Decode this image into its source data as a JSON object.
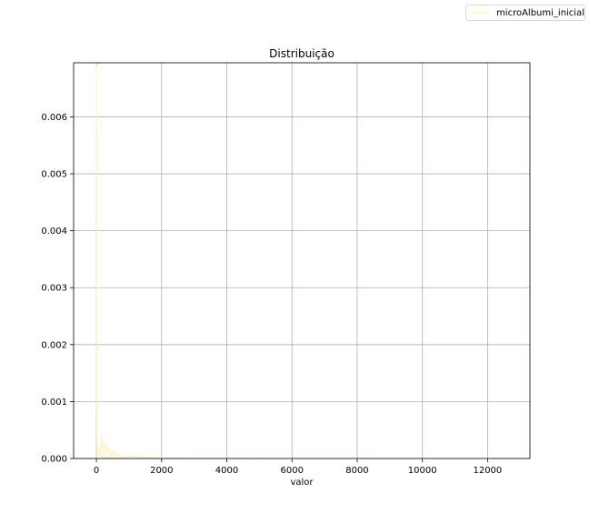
{
  "chart_data": {
    "type": "area",
    "title": "Distribuição",
    "xlabel": "valor",
    "ylabel": "",
    "xlim": [
      -700,
      13300
    ],
    "ylim": [
      0,
      0.00695
    ],
    "xticks": [
      0,
      2000,
      4000,
      6000,
      8000,
      10000,
      12000
    ],
    "yticks": [
      0.0,
      0.001,
      0.002,
      0.003,
      0.004,
      0.005,
      0.006
    ],
    "ytick_format": 3,
    "grid": true,
    "legend_position": "top-right",
    "series": [
      {
        "name": "microAlbumi_inicial",
        "color": "#fff2cc",
        "x": [
          0,
          5,
          10,
          15,
          20,
          30,
          40,
          60,
          80,
          100,
          120,
          150,
          180,
          200,
          230,
          260,
          300,
          340,
          380,
          420,
          460,
          500,
          550,
          600,
          650,
          700,
          800,
          900,
          1000,
          1200,
          1400,
          1600,
          1800,
          2000,
          2500,
          3000,
          4000,
          5000,
          6000,
          8000,
          10000,
          12000,
          12500
        ],
        "y": [
          0.0069,
          0.003,
          0.0009,
          0.0004,
          0.00025,
          0.00015,
          0.00012,
          0.0001,
          9e-05,
          8e-05,
          0.0002,
          0.00045,
          0.0003,
          0.00022,
          0.00012,
          0.00028,
          0.00018,
          0.0001,
          0.00022,
          0.00012,
          8e-05,
          0.00015,
          9e-05,
          0.00011,
          7e-05,
          6e-05,
          5e-05,
          4e-05,
          4e-05,
          3e-05,
          2.5e-05,
          2e-05,
          1.5e-05,
          1e-05,
          8e-06,
          6e-06,
          4e-06,
          3e-06,
          2e-06,
          1.5e-06,
          1e-06,
          1e-06,
          0.0
        ]
      }
    ]
  }
}
